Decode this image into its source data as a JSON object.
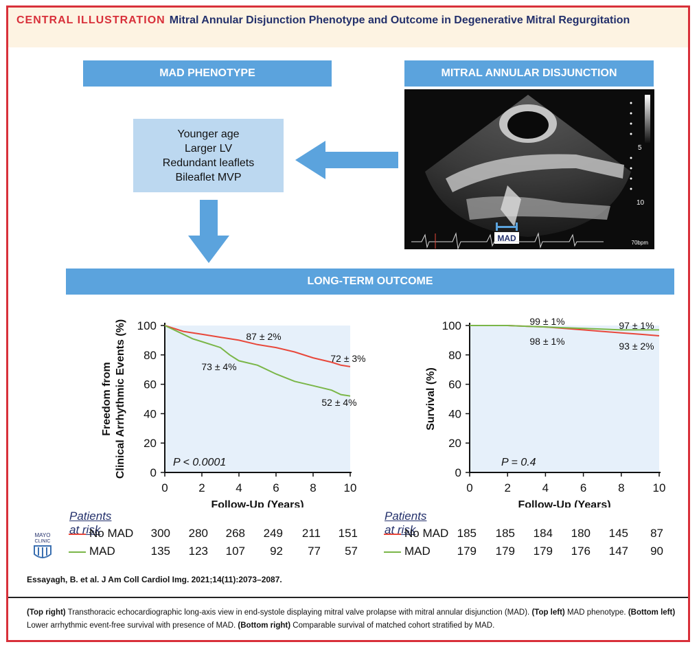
{
  "header": {
    "label": "CENTRAL ILLUSTRATION",
    "title": "Mitral Annular Disjunction Phenotype and Outcome in Degenerative Mitral Regurgitation"
  },
  "phenotype": {
    "heading": "MAD PHENOTYPE",
    "items": [
      "Younger age",
      "Larger LV",
      "Redundant leaflets",
      "Bileaflet MVP"
    ]
  },
  "echo": {
    "heading": "MITRAL ANNULAR DISJUNCTION",
    "mad_label": "MAD",
    "depth_5": "5",
    "depth_10": "10",
    "heart_rate": "70bpm"
  },
  "outcome": {
    "heading": "LONG-TERM OUTCOME"
  },
  "colors": {
    "no_mad": "#e8473a",
    "mad": "#7ab648",
    "accent": "#5ba3dd",
    "brand_red": "#d8303a",
    "plot_bg": "#e6f0fa"
  },
  "chart_data": [
    {
      "type": "line",
      "ylabel_line1": "Freedom from",
      "ylabel_line2": "Clinical Arrhythmic Events (%)",
      "xlabel": "Follow-Up (Years)",
      "xlim": [
        0,
        10
      ],
      "ylim": [
        0,
        100
      ],
      "xticks": [
        "0",
        "2",
        "4",
        "6",
        "8",
        "10"
      ],
      "yticks": [
        "0",
        "20",
        "40",
        "60",
        "80",
        "100"
      ],
      "pvalue": "P < 0.0001",
      "annotations": [
        "87 ± 2%",
        "72 ± 3%",
        "73 ± 4%",
        "52 ± 4%"
      ],
      "series": [
        {
          "name": "No MAD",
          "x": [
            0,
            0.5,
            1,
            2,
            3,
            4,
            5,
            6,
            7,
            8,
            9,
            9.5,
            10
          ],
          "y": [
            100,
            98,
            96,
            94,
            92,
            90,
            87,
            85,
            82,
            78,
            75,
            73,
            72
          ]
        },
        {
          "name": "MAD",
          "x": [
            0,
            0.5,
            1,
            1.5,
            2,
            3,
            3.5,
            4,
            5,
            6,
            7,
            8,
            9,
            9.5,
            10
          ],
          "y": [
            100,
            97,
            94,
            91,
            89,
            85,
            80,
            76,
            73,
            67,
            62,
            59,
            56,
            53,
            52
          ]
        }
      ]
    },
    {
      "type": "line",
      "ylabel": "Survival (%)",
      "xlabel": "Follow-Up (Years)",
      "xlim": [
        0,
        10
      ],
      "ylim": [
        0,
        100
      ],
      "xticks": [
        "0",
        "2",
        "4",
        "6",
        "8",
        "10"
      ],
      "yticks": [
        "0",
        "20",
        "40",
        "60",
        "80",
        "100"
      ],
      "pvalue": "P = 0.4",
      "annotations": [
        "99 ± 1%",
        "98 ± 1%",
        "97 ± 1%",
        "93 ± 2%"
      ],
      "series": [
        {
          "name": "No MAD",
          "x": [
            0,
            2,
            3,
            4,
            5,
            6,
            7,
            8,
            9,
            10
          ],
          "y": [
            100,
            100,
            99.5,
            99,
            98,
            97,
            96,
            95,
            94,
            93
          ]
        },
        {
          "name": "MAD",
          "x": [
            0,
            2,
            3,
            4,
            5,
            6,
            7,
            8,
            9,
            10
          ],
          "y": [
            100,
            100,
            99.5,
            99,
            98.5,
            98,
            97.5,
            97,
            97,
            97
          ]
        }
      ]
    }
  ],
  "risk_left": {
    "heading": "Patients at risk",
    "rows": [
      {
        "label": "No MAD",
        "values": [
          "300",
          "280",
          "268",
          "249",
          "211",
          "151"
        ]
      },
      {
        "label": "MAD",
        "values": [
          "135",
          "123",
          "107",
          "92",
          "77",
          "57"
        ]
      }
    ]
  },
  "risk_right": {
    "heading": "Patients at risk",
    "rows": [
      {
        "label": "No MAD",
        "values": [
          "185",
          "185",
          "184",
          "180",
          "145",
          "87"
        ]
      },
      {
        "label": "MAD",
        "values": [
          "179",
          "179",
          "179",
          "176",
          "147",
          "90"
        ]
      }
    ]
  },
  "logo": {
    "line1": "MAYO",
    "line2": "CLINIC"
  },
  "citation": "Essayagh, B. et al. J Am Coll Cardiol Img. 2021;14(11):2073–2087.",
  "caption": [
    {
      "bold": "(Top right)",
      "text": " Transthoracic echocardiographic long-axis view in end-systole displaying mitral valve prolapse with mitral annular disjunction (MAD). "
    },
    {
      "bold": "(Top left)",
      "text": " MAD phenotype. "
    },
    {
      "bold": "(Bottom left)",
      "text": " Lower arrhythmic event-free survival with presence of MAD. "
    },
    {
      "bold": "(Bottom right)",
      "text": " Comparable survival of matched cohort stratified by MAD."
    }
  ]
}
